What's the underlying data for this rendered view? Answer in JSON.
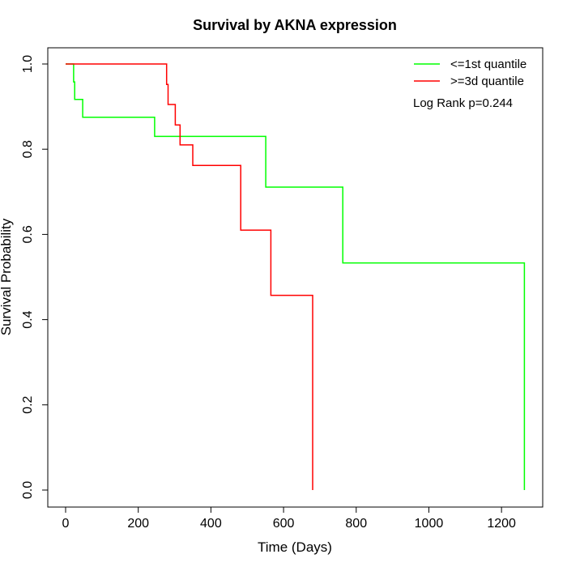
{
  "chart_data": {
    "type": "line",
    "title": "Survival by AKNA expression",
    "xlabel": "Time (Days)",
    "ylabel": "Survival Probability",
    "xlim": [
      0,
      1265
    ],
    "ylim": [
      0,
      1.0
    ],
    "x_ticks": [
      0,
      200,
      400,
      600,
      800,
      1000,
      1200
    ],
    "y_ticks": [
      0.0,
      0.2,
      0.4,
      0.6,
      0.8,
      1.0
    ],
    "x_tick_labels": [
      "0",
      "200",
      "400",
      "600",
      "800",
      "1000",
      "1200"
    ],
    "y_tick_labels": [
      "0.0",
      "0.2",
      "0.4",
      "0.6",
      "0.8",
      "1.0"
    ],
    "grid": false,
    "legend_position": "top-right",
    "annotation": "Log Rank p=0.244",
    "series": [
      {
        "name": "<=1st quantile",
        "color": "#00ff00",
        "x": [
          0,
          22,
          22,
          22,
          22,
          25,
          25,
          47,
          47,
          245,
          245,
          551,
          551,
          763,
          763,
          1263,
          1263
        ],
        "y": [
          1.0,
          1.0,
          0.98,
          0.96,
          0.958,
          0.958,
          0.917,
          0.917,
          0.875,
          0.875,
          0.83,
          0.83,
          0.711,
          0.711,
          0.533,
          0.533,
          0.0
        ]
      },
      {
        "name": ">=3d quantile",
        "color": "#ff0000",
        "x": [
          0,
          278,
          278,
          282,
          282,
          302,
          302,
          315,
          315,
          350,
          350,
          482,
          482,
          565,
          565,
          680,
          680
        ],
        "y": [
          1.0,
          1.0,
          0.952,
          0.952,
          0.905,
          0.905,
          0.857,
          0.857,
          0.81,
          0.81,
          0.762,
          0.762,
          0.61,
          0.61,
          0.457,
          0.457,
          0.0
        ]
      }
    ]
  }
}
